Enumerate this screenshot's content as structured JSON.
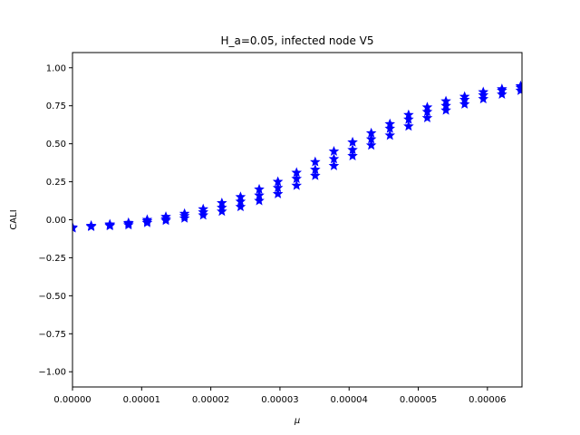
{
  "chart_data": {
    "type": "scatter",
    "title": "H_a=0.05, infected node V5",
    "xlabel": "μ",
    "ylabel": "CALI",
    "xlim": [
      0,
      6.5e-05
    ],
    "ylim": [
      -1.1,
      1.1
    ],
    "xticks": [
      0,
      1e-05,
      2e-05,
      3e-05,
      4e-05,
      5e-05,
      6e-05
    ],
    "xtick_labels": [
      "0.00000",
      "0.00001",
      "0.00002",
      "0.00003",
      "0.00004",
      "0.00005",
      "0.00006"
    ],
    "yticks": [
      -1.0,
      -0.75,
      -0.5,
      -0.25,
      0.0,
      0.25,
      0.5,
      0.75,
      1.0
    ],
    "ytick_labels": [
      "−1.00",
      "−0.75",
      "−0.50",
      "−0.25",
      "0.00",
      "0.25",
      "0.50",
      "0.75",
      "1.00"
    ],
    "grid": false,
    "marker_color": "#0000ff",
    "marker": "star",
    "x": [
      0,
      2.7e-06,
      5.4e-06,
      8.1e-06,
      1.08e-05,
      1.35e-05,
      1.62e-05,
      1.89e-05,
      2.16e-05,
      2.43e-05,
      2.7e-05,
      2.97e-05,
      3.24e-05,
      3.51e-05,
      3.78e-05,
      4.05e-05,
      4.32e-05,
      4.59e-05,
      4.86e-05,
      5.13e-05,
      5.4e-05,
      5.67e-05,
      5.94e-05,
      6.21e-05,
      6.48e-05
    ],
    "series": [
      {
        "values": [
          -0.05,
          -0.04,
          -0.03,
          -0.02,
          0.0,
          0.02,
          0.04,
          0.07,
          0.11,
          0.15,
          0.2,
          0.25,
          0.31,
          0.38,
          0.45,
          0.51,
          0.57,
          0.63,
          0.69,
          0.74,
          0.78,
          0.81,
          0.84,
          0.86,
          0.88
        ]
      },
      {
        "values": [
          -0.05,
          -0.04,
          -0.035,
          -0.025,
          -0.01,
          0.005,
          0.025,
          0.05,
          0.08,
          0.12,
          0.16,
          0.21,
          0.27,
          0.33,
          0.4,
          0.46,
          0.53,
          0.6,
          0.66,
          0.71,
          0.75,
          0.79,
          0.82,
          0.85,
          0.87
        ]
      },
      {
        "values": [
          -0.055,
          -0.045,
          -0.04,
          -0.035,
          -0.02,
          -0.005,
          0.01,
          0.03,
          0.055,
          0.085,
          0.125,
          0.17,
          0.225,
          0.29,
          0.355,
          0.42,
          0.49,
          0.555,
          0.615,
          0.67,
          0.72,
          0.76,
          0.795,
          0.825,
          0.85
        ]
      }
    ]
  }
}
